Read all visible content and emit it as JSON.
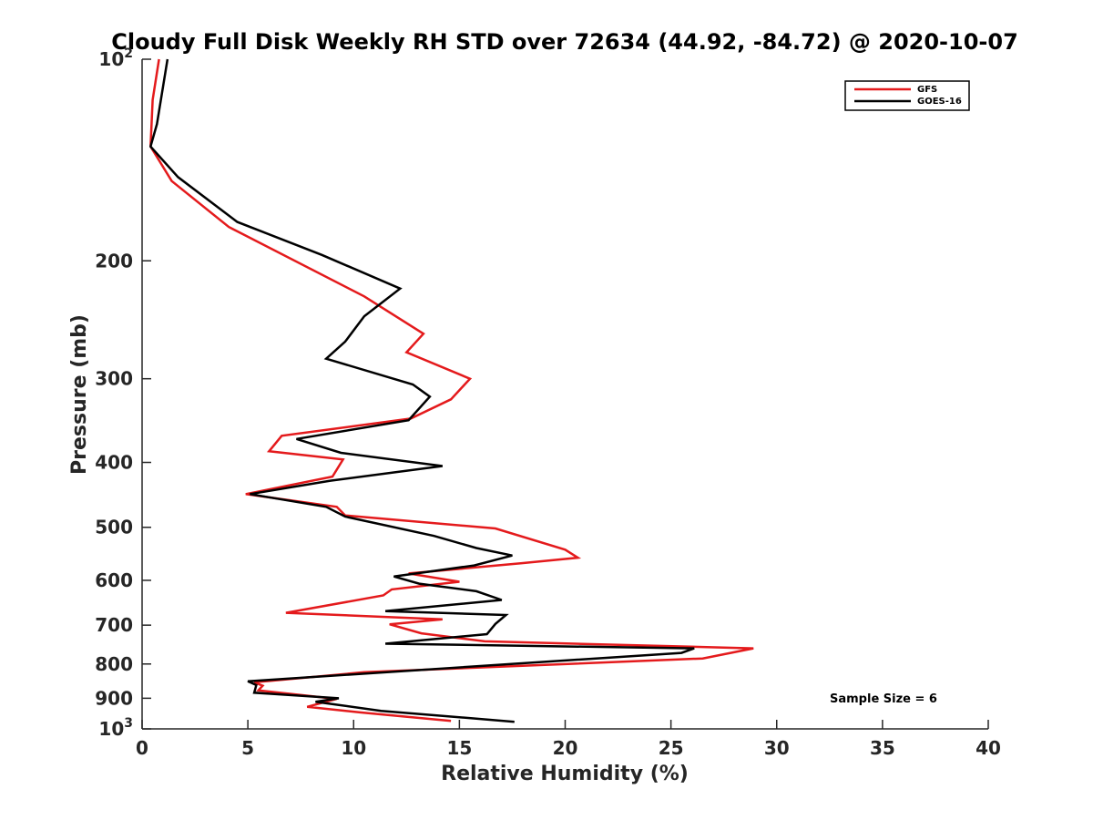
{
  "chart_data": {
    "type": "line",
    "title": "Cloudy Full Disk Weekly RH STD over 72634 (44.92, -84.72) @ 2020-10-07",
    "xlabel": "Relative Humidity (%)",
    "ylabel": "Pressure (mb)",
    "xlim": [
      0,
      40
    ],
    "ylim": [
      1000,
      100
    ],
    "yscale": "log",
    "y_reversed": true,
    "grid": false,
    "legend_position": "top-right",
    "x_ticks": [
      "0",
      "5",
      "10",
      "15",
      "20",
      "25",
      "30",
      "35",
      "40"
    ],
    "y_ticks": [
      {
        "value": 100,
        "base": "10",
        "exp": "2"
      },
      {
        "value": 200,
        "label": "200"
      },
      {
        "value": 300,
        "label": "300"
      },
      {
        "value": 400,
        "label": "400"
      },
      {
        "value": 500,
        "label": "500"
      },
      {
        "value": 600,
        "label": "600"
      },
      {
        "value": 700,
        "label": "700"
      },
      {
        "value": 800,
        "label": "800"
      },
      {
        "value": 900,
        "label": "900"
      },
      {
        "value": 1000,
        "base": "10",
        "exp": "3"
      }
    ],
    "annotation": "Sample Size = 6",
    "series": [
      {
        "name": "GFS",
        "color": "#e41a1c",
        "points": [
          [
            0.8,
            100
          ],
          [
            0.5,
            115
          ],
          [
            0.4,
            135
          ],
          [
            1.4,
            152
          ],
          [
            4.1,
            178
          ],
          [
            10.5,
            226
          ],
          [
            13.3,
            257
          ],
          [
            12.5,
            274
          ],
          [
            15.5,
            300
          ],
          [
            14.6,
            322
          ],
          [
            12.7,
            344
          ],
          [
            6.6,
            365
          ],
          [
            6.0,
            385
          ],
          [
            9.5,
            396
          ],
          [
            9.0,
            420
          ],
          [
            4.9,
            446
          ],
          [
            9.2,
            466
          ],
          [
            9.6,
            480
          ],
          [
            16.7,
            502
          ],
          [
            20.0,
            540
          ],
          [
            20.6,
            555
          ],
          [
            17.9,
            566
          ],
          [
            12.6,
            586
          ],
          [
            15.0,
            603
          ],
          [
            11.8,
            619
          ],
          [
            11.4,
            632
          ],
          [
            6.8,
            671
          ],
          [
            14.2,
            686
          ],
          [
            11.7,
            698
          ],
          [
            13.2,
            720
          ],
          [
            16.2,
            740
          ],
          [
            28.9,
            758
          ],
          [
            26.5,
            785
          ],
          [
            10.5,
            823
          ],
          [
            5.3,
            852
          ],
          [
            5.7,
            862
          ],
          [
            5.5,
            876
          ],
          [
            9.2,
            902
          ],
          [
            7.8,
            927
          ],
          [
            10.3,
            945
          ],
          [
            14.6,
            973
          ]
        ]
      },
      {
        "name": "GOES-16",
        "color": "#000000",
        "points": [
          [
            1.2,
            100
          ],
          [
            0.7,
            125
          ],
          [
            0.4,
            135
          ],
          [
            1.7,
            150
          ],
          [
            4.5,
            175
          ],
          [
            8.5,
            196
          ],
          [
            12.2,
            220
          ],
          [
            10.5,
            242
          ],
          [
            9.6,
            264
          ],
          [
            8.7,
            280
          ],
          [
            12.8,
            306
          ],
          [
            13.6,
            319
          ],
          [
            12.6,
            346
          ],
          [
            7.3,
            369
          ],
          [
            9.4,
            387
          ],
          [
            14.2,
            405
          ],
          [
            8.9,
            426
          ],
          [
            5.1,
            446
          ],
          [
            8.7,
            466
          ],
          [
            9.6,
            482
          ],
          [
            13.8,
            515
          ],
          [
            15.8,
            537
          ],
          [
            17.5,
            551
          ],
          [
            15.7,
            570
          ],
          [
            11.9,
            592
          ],
          [
            13.1,
            607
          ],
          [
            15.8,
            623
          ],
          [
            17.0,
            642
          ],
          [
            11.5,
            667
          ],
          [
            17.2,
            676
          ],
          [
            16.7,
            697
          ],
          [
            16.3,
            722
          ],
          [
            11.5,
            746
          ],
          [
            26.1,
            758
          ],
          [
            25.5,
            770
          ],
          [
            5.0,
            849
          ],
          [
            5.4,
            860
          ],
          [
            5.3,
            883
          ],
          [
            9.3,
            900
          ],
          [
            8.2,
            911
          ],
          [
            11.3,
            940
          ],
          [
            17.6,
            976
          ]
        ]
      }
    ]
  }
}
